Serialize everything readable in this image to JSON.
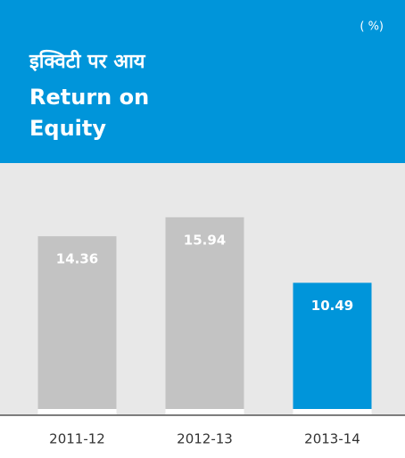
{
  "chart_data": {
    "type": "bar",
    "unit": "( %)",
    "title_hindi": "इक्विटी पर आय",
    "title": [
      "Return on",
      "Equity"
    ],
    "categories": [
      "2011-12",
      "2012-13",
      "2013-14"
    ],
    "values": [
      14.36,
      15.94,
      10.49
    ],
    "colors": [
      "#c3c3c3",
      "#c3c3c3",
      "#0095da"
    ],
    "header_color": "#0095da"
  }
}
